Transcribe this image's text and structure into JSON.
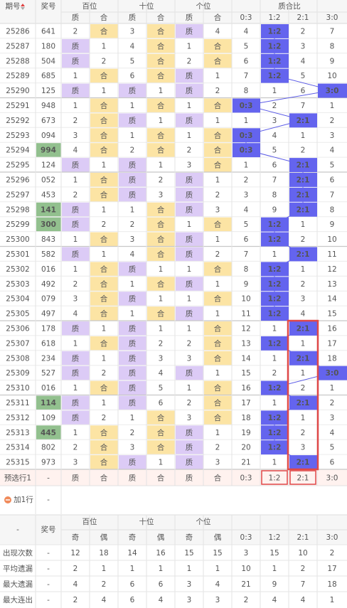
{
  "header": {
    "period": "期号",
    "number": "奖号",
    "groups": [
      "百位",
      "十位",
      "个位",
      "质合比"
    ],
    "sub": [
      "质",
      "合",
      "质",
      "合",
      "质",
      "合",
      "0:3",
      "1:2",
      "2:1",
      "3:0"
    ]
  },
  "rows": [
    [
      "25286",
      "641",
      "2",
      "合",
      "3",
      "合",
      "质",
      "4",
      "4",
      "1:2",
      "2",
      "7"
    ],
    [
      "25287",
      "180",
      "质",
      "1",
      "4",
      "合",
      "1",
      "合",
      "5",
      "1:2",
      "3",
      "8"
    ],
    [
      "25288",
      "504",
      "质",
      "2",
      "5",
      "合",
      "2",
      "合",
      "6",
      "1:2",
      "4",
      "9"
    ],
    [
      "25289",
      "685",
      "1",
      "合",
      "6",
      "合",
      "质",
      "1",
      "7",
      "1:2",
      "5",
      "10"
    ],
    [
      "25290",
      "125",
      "质",
      "1",
      "质",
      "1",
      "质",
      "2",
      "8",
      "1",
      "6",
      "3:0"
    ],
    [
      "25291",
      "948",
      "1",
      "合",
      "1",
      "合",
      "1",
      "合",
      "0:3",
      "2",
      "7",
      "1"
    ],
    [
      "25292",
      "673",
      "2",
      "合",
      "质",
      "1",
      "质",
      "1",
      "1",
      "3",
      "2:1",
      "2"
    ],
    [
      "25293",
      "094",
      "3",
      "合",
      "1",
      "合",
      "1",
      "合",
      "0:3",
      "4",
      "1",
      "3"
    ],
    [
      "25294",
      "994",
      "4",
      "合",
      "2",
      "合",
      "2",
      "合",
      "0:3",
      "5",
      "2",
      "4"
    ],
    [
      "25295",
      "124",
      "质",
      "1",
      "质",
      "1",
      "3",
      "合",
      "1",
      "6",
      "2:1",
      "5"
    ],
    [
      "25296",
      "052",
      "1",
      "合",
      "质",
      "2",
      "质",
      "1",
      "2",
      "7",
      "2:1",
      "6"
    ],
    [
      "25297",
      "453",
      "2",
      "合",
      "质",
      "3",
      "质",
      "2",
      "3",
      "8",
      "2:1",
      "7"
    ],
    [
      "25298",
      "141",
      "质",
      "1",
      "1",
      "合",
      "质",
      "3",
      "4",
      "9",
      "2:1",
      "8"
    ],
    [
      "25299",
      "300",
      "质",
      "2",
      "2",
      "合",
      "1",
      "合",
      "5",
      "1:2",
      "1",
      "9"
    ],
    [
      "25300",
      "843",
      "1",
      "合",
      "3",
      "合",
      "质",
      "1",
      "6",
      "1:2",
      "2",
      "10"
    ],
    [
      "25301",
      "582",
      "质",
      "1",
      "4",
      "合",
      "质",
      "2",
      "7",
      "1",
      "2:1",
      "11"
    ],
    [
      "25302",
      "016",
      "1",
      "合",
      "质",
      "1",
      "1",
      "合",
      "8",
      "1:2",
      "1",
      "12"
    ],
    [
      "25303",
      "492",
      "2",
      "合",
      "1",
      "合",
      "质",
      "1",
      "9",
      "1:2",
      "2",
      "13"
    ],
    [
      "25304",
      "079",
      "3",
      "合",
      "质",
      "1",
      "1",
      "合",
      "10",
      "1:2",
      "3",
      "14"
    ],
    [
      "25305",
      "497",
      "4",
      "合",
      "1",
      "合",
      "质",
      "1",
      "11",
      "1:2",
      "4",
      "15"
    ],
    [
      "25306",
      "178",
      "质",
      "1",
      "质",
      "1",
      "1",
      "合",
      "12",
      "1",
      "2:1",
      "16"
    ],
    [
      "25307",
      "618",
      "1",
      "合",
      "质",
      "2",
      "2",
      "合",
      "13",
      "1:2",
      "1",
      "17"
    ],
    [
      "25308",
      "234",
      "质",
      "1",
      "质",
      "3",
      "3",
      "合",
      "14",
      "1",
      "2:1",
      "18"
    ],
    [
      "25309",
      "527",
      "质",
      "2",
      "质",
      "4",
      "质",
      "1",
      "15",
      "2",
      "1",
      "3:0"
    ],
    [
      "25310",
      "016",
      "1",
      "合",
      "质",
      "5",
      "1",
      "合",
      "16",
      "1:2",
      "2",
      "1"
    ],
    [
      "25311",
      "114",
      "质",
      "1",
      "质",
      "6",
      "2",
      "合",
      "17",
      "1",
      "2:1",
      "2"
    ],
    [
      "25312",
      "109",
      "质",
      "2",
      "1",
      "合",
      "3",
      "合",
      "18",
      "1:2",
      "1",
      "3"
    ],
    [
      "25313",
      "445",
      "1",
      "合",
      "2",
      "合",
      "质",
      "1",
      "19",
      "1:2",
      "2",
      "4"
    ],
    [
      "25314",
      "802",
      "2",
      "合",
      "3",
      "合",
      "质",
      "2",
      "20",
      "1:2",
      "3",
      "5"
    ],
    [
      "25315",
      "973",
      "3",
      "合",
      "质",
      "1",
      "质",
      "3",
      "21",
      "1",
      "2:1",
      "6"
    ]
  ],
  "predict": [
    "预选行1",
    "-",
    "质",
    "合",
    "质",
    "合",
    "质",
    "合",
    "0:3",
    "1:2",
    "2:1",
    "3:0"
  ],
  "add_row": {
    "label": "加1行",
    "value": "-"
  },
  "stats": {
    "header": {
      "first": "-",
      "number": "奖号",
      "groups": [
        "百位",
        "十位",
        "个位"
      ],
      "sub": [
        "奇",
        "偶",
        "奇",
        "偶",
        "奇",
        "偶",
        "0:3",
        "1:2",
        "2:1",
        "3:0"
      ]
    },
    "rows": [
      [
        "出现次数",
        "-",
        12,
        18,
        14,
        16,
        15,
        15,
        3,
        15,
        10,
        2
      ],
      [
        "平均遗漏",
        "-",
        2,
        1,
        1,
        1,
        1,
        1,
        10,
        1,
        2,
        17
      ],
      [
        "最大遗漏",
        "-",
        4,
        2,
        6,
        6,
        3,
        4,
        21,
        9,
        7,
        18
      ],
      [
        "最大连出",
        "-",
        2,
        4,
        6,
        4,
        3,
        3,
        2,
        4,
        4,
        1
      ]
    ]
  }
}
